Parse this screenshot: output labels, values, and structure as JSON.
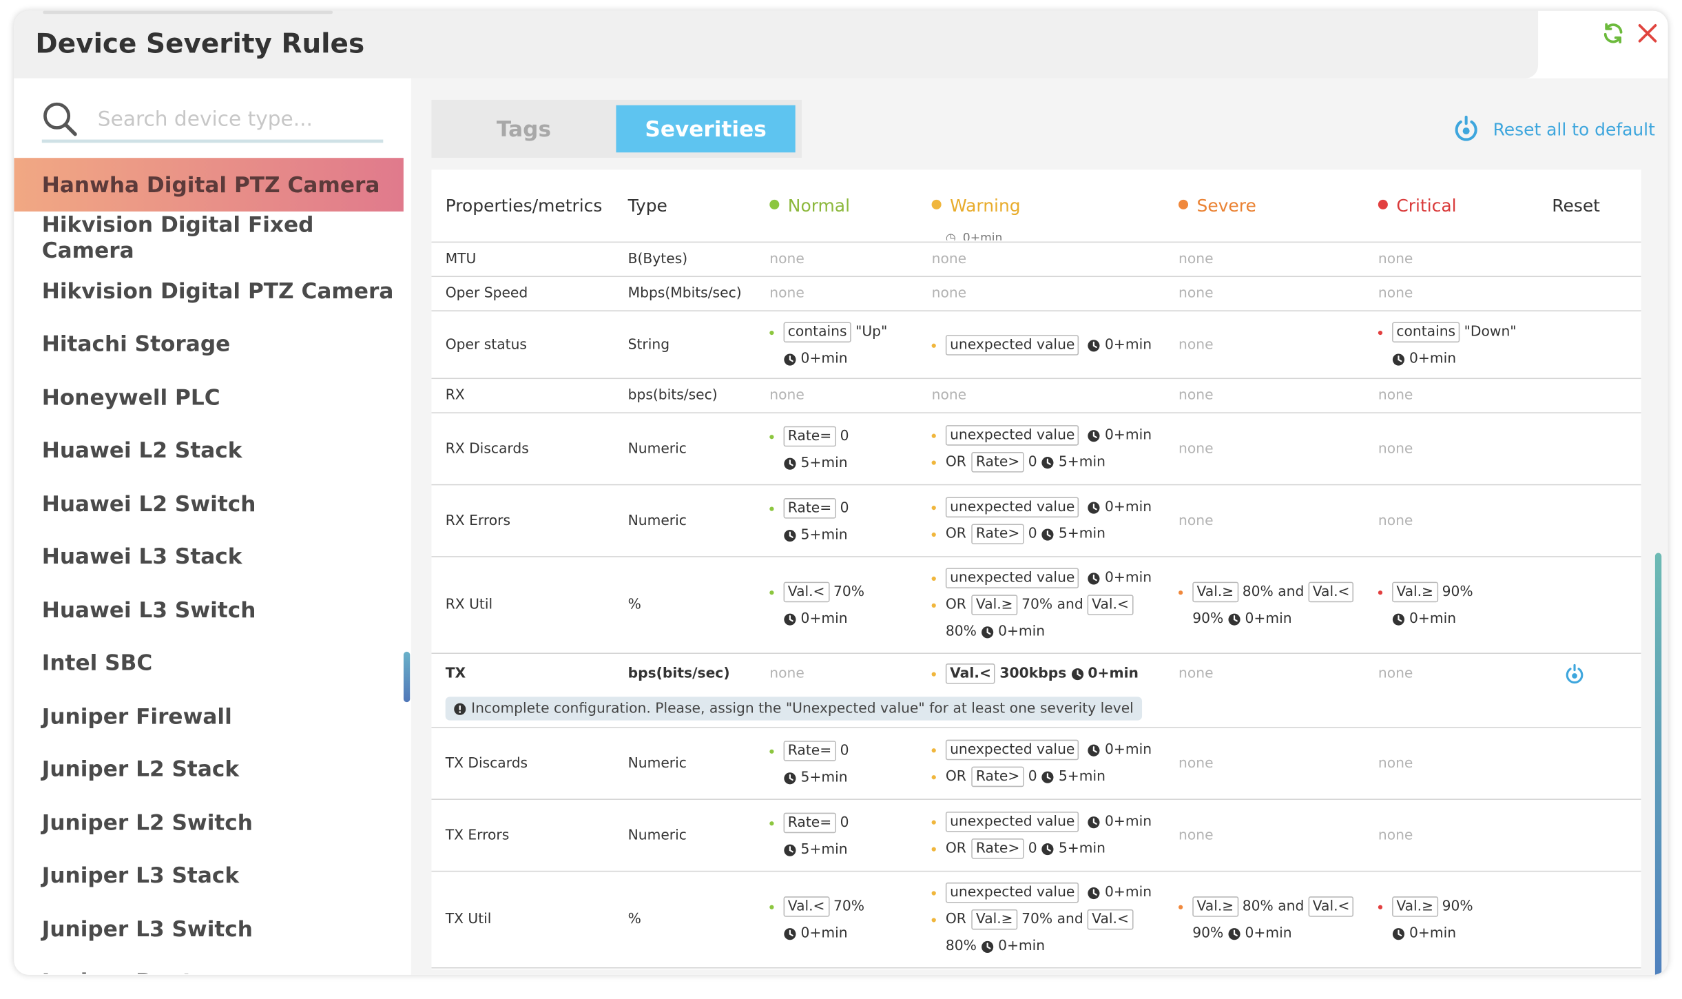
{
  "modal": {
    "title": "Device Severity Rules"
  },
  "search": {
    "placeholder": "Search device type..."
  },
  "sidebar": {
    "items": [
      {
        "label": "Hanwha Digital PTZ Camera",
        "active": true
      },
      {
        "label": "Hikvision Digital Fixed Camera"
      },
      {
        "label": "Hikvision Digital PTZ Camera"
      },
      {
        "label": "Hitachi Storage"
      },
      {
        "label": "Honeywell PLC"
      },
      {
        "label": "Huawei L2 Stack"
      },
      {
        "label": "Huawei L2 Switch"
      },
      {
        "label": "Huawei L3 Stack"
      },
      {
        "label": "Huawei L3 Switch"
      },
      {
        "label": "Intel SBC"
      },
      {
        "label": "Juniper Firewall"
      },
      {
        "label": "Juniper L2 Stack"
      },
      {
        "label": "Juniper L2 Switch"
      },
      {
        "label": "Juniper L3 Stack"
      },
      {
        "label": "Juniper L3 Switch"
      },
      {
        "label": "Juniper Router"
      }
    ]
  },
  "tabs": {
    "tags": "Tags",
    "severities": "Severities",
    "active": "Severities"
  },
  "reset_all": "Reset all to default",
  "table": {
    "headers": {
      "properties": "Properties/metrics",
      "type": "Type",
      "normal": "Normal",
      "warning": "Warning",
      "severe": "Severe",
      "critical": "Critical",
      "reset": "Reset"
    },
    "colors": {
      "normal": "#8cc63f",
      "warning": "#f0b63c",
      "severe": "#f0883c",
      "critical": "#e23f3f"
    },
    "ghost_text": "0+min",
    "none": "none",
    "rows": [
      {
        "name": "MTU",
        "type": "B(Bytes)"
      },
      {
        "name": "Oper Speed",
        "type": "Mbps(Mbits/sec)"
      },
      {
        "name": "Oper status",
        "type": "String",
        "normal": {
          "op": "contains",
          "value": "\"Up\"",
          "time": "0+min"
        },
        "warning": {
          "op": "unexpected value",
          "time": "0+min"
        },
        "critical": {
          "op": "contains",
          "value": "\"Down\"",
          "time": "0+min"
        }
      },
      {
        "name": "RX",
        "type": "bps(bits/sec)"
      },
      {
        "name": "RX Discards",
        "type": "Numeric",
        "normal": {
          "op": "Rate=",
          "value": "0",
          "time": "5+min"
        },
        "warning": {
          "op": "unexpected value",
          "time": "0+min",
          "or": "OR",
          "op2": "Rate>",
          "value2": "0",
          "time2": "5+min"
        }
      },
      {
        "name": "RX Errors",
        "type": "Numeric",
        "normal": {
          "op": "Rate=",
          "value": "0",
          "time": "5+min"
        },
        "warning": {
          "op": "unexpected value",
          "time": "0+min",
          "or": "OR",
          "op2": "Rate>",
          "value2": "0",
          "time2": "5+min"
        }
      },
      {
        "name": "RX Util",
        "type": "%",
        "normal": {
          "op": "Val.<",
          "value": "70%",
          "time": "0+min"
        },
        "warning": {
          "op": "unexpected value",
          "time": "0+min",
          "or": "OR",
          "op2": "Val.≥",
          "value2": "70% and",
          "op3": "Val.<",
          "value3": "80%",
          "time2": "0+min"
        },
        "severe": {
          "op": "Val.≥",
          "value": "80% and",
          "op2": "Val.<",
          "value2": "90%",
          "time": "0+min"
        },
        "critical": {
          "op": "Val.≥",
          "value": "90%",
          "time": "0+min"
        }
      },
      {
        "name": "TX",
        "type": "bps(bits/sec)",
        "warning": {
          "op": "Val.<",
          "value": "300kbps",
          "time": "0+min"
        },
        "message": "Incomplete configuration. Please, assign the \"Unexpected value\" for at least one severity level"
      },
      {
        "name": "TX Discards",
        "type": "Numeric",
        "normal": {
          "op": "Rate=",
          "value": "0",
          "time": "5+min"
        },
        "warning": {
          "op": "unexpected value",
          "time": "0+min",
          "or": "OR",
          "op2": "Rate>",
          "value2": "0",
          "time2": "5+min"
        }
      },
      {
        "name": "TX Errors",
        "type": "Numeric",
        "normal": {
          "op": "Rate=",
          "value": "0",
          "time": "5+min"
        },
        "warning": {
          "op": "unexpected value",
          "time": "0+min",
          "or": "OR",
          "op2": "Rate>",
          "value2": "0",
          "time2": "5+min"
        }
      },
      {
        "name": "TX Util",
        "type": "%",
        "normal": {
          "op": "Val.<",
          "value": "70%",
          "time": "0+min"
        },
        "warning": {
          "op": "unexpected value",
          "time": "0+min",
          "or": "OR",
          "op2": "Val.≥",
          "value2": "70% and",
          "op3": "Val.<",
          "value3": "80%",
          "time2": "0+min"
        },
        "severe": {
          "op": "Val.≥",
          "value": "80% and",
          "op2": "Val.<",
          "value2": "90%",
          "time": "0+min"
        },
        "critical": {
          "op": "Val.≥",
          "value": "90%",
          "time": "0+min"
        }
      }
    ]
  }
}
